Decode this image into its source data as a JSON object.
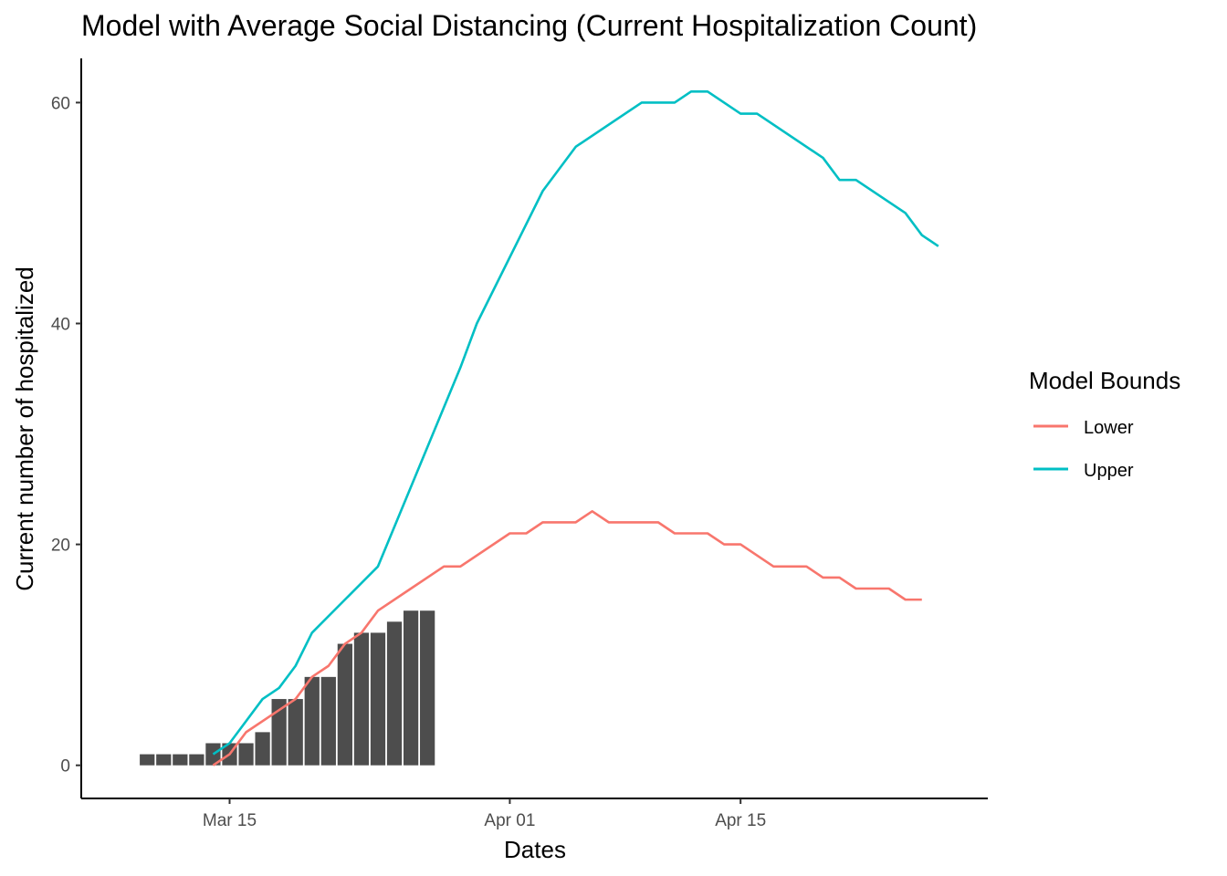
{
  "chart_data": {
    "type": "bar+line",
    "title": "Model with Average Social Distancing (Current Hospitalization Count)",
    "xlabel": "Dates",
    "ylabel": "Current number of hospitalized",
    "x_ticks": [
      {
        "date": "2020-03-15",
        "label": "Mar 15"
      },
      {
        "date": "2020-04-01",
        "label": "Apr 01"
      },
      {
        "date": "2020-04-15",
        "label": "Apr 15"
      }
    ],
    "y_ticks": [
      0,
      20,
      40,
      60
    ],
    "xlim": [
      "2020-03-06",
      "2020-04-30"
    ],
    "ylim": [
      -3,
      64
    ],
    "grid": false,
    "legend": {
      "title": "Model Bounds",
      "placement": "right",
      "entries": [
        {
          "label": "Lower",
          "color": "#F8766D"
        },
        {
          "label": "Upper",
          "color": "#00BFC4"
        }
      ]
    },
    "bars": {
      "color": "#4D4D4D",
      "x": [
        "2020-03-10",
        "2020-03-11",
        "2020-03-12",
        "2020-03-13",
        "2020-03-14",
        "2020-03-15",
        "2020-03-16",
        "2020-03-17",
        "2020-03-18",
        "2020-03-19",
        "2020-03-20",
        "2020-03-21",
        "2020-03-22",
        "2020-03-23",
        "2020-03-24",
        "2020-03-25",
        "2020-03-26",
        "2020-03-27"
      ],
      "values": [
        1,
        1,
        1,
        1,
        2,
        2,
        2,
        3,
        6,
        6,
        8,
        8,
        11,
        12,
        12,
        13,
        14,
        14
      ]
    },
    "series": [
      {
        "name": "Lower",
        "color": "#F8766D",
        "x": [
          "2020-03-14",
          "2020-03-15",
          "2020-03-16",
          "2020-03-18",
          "2020-03-19",
          "2020-03-20",
          "2020-03-21",
          "2020-03-22",
          "2020-03-23",
          "2020-03-24",
          "2020-03-26",
          "2020-03-28",
          "2020-03-29",
          "2020-04-01",
          "2020-04-02",
          "2020-04-03",
          "2020-04-04",
          "2020-04-05",
          "2020-04-06",
          "2020-04-07",
          "2020-04-08",
          "2020-04-09",
          "2020-04-10",
          "2020-04-11",
          "2020-04-12",
          "2020-04-13",
          "2020-04-14",
          "2020-04-15",
          "2020-04-16",
          "2020-04-17",
          "2020-04-18",
          "2020-04-19",
          "2020-04-20",
          "2020-04-21",
          "2020-04-22",
          "2020-04-23",
          "2020-04-24",
          "2020-04-25",
          "2020-04-26"
        ],
        "values": [
          0,
          1,
          3,
          5,
          6,
          8,
          9,
          11,
          12,
          14,
          16,
          18,
          18,
          21,
          21,
          22,
          22,
          22,
          23,
          22,
          22,
          22,
          22,
          21,
          21,
          21,
          20,
          20,
          19,
          18,
          18,
          18,
          17,
          17,
          16,
          16,
          16,
          15,
          15
        ]
      },
      {
        "name": "Upper",
        "color": "#00BFC4",
        "x": [
          "2020-03-14",
          "2020-03-15",
          "2020-03-17",
          "2020-03-18",
          "2020-03-19",
          "2020-03-20",
          "2020-03-24",
          "2020-03-29",
          "2020-03-30",
          "2020-04-03",
          "2020-04-05",
          "2020-04-09",
          "2020-04-11",
          "2020-04-12",
          "2020-04-13",
          "2020-04-15",
          "2020-04-16",
          "2020-04-20",
          "2020-04-21",
          "2020-04-22",
          "2020-04-25",
          "2020-04-26",
          "2020-04-27"
        ],
        "values": [
          1,
          2,
          6,
          7,
          9,
          12,
          18,
          36,
          40,
          52,
          56,
          60,
          60,
          61,
          61,
          59,
          59,
          55,
          53,
          53,
          50,
          48,
          47
        ]
      }
    ]
  }
}
